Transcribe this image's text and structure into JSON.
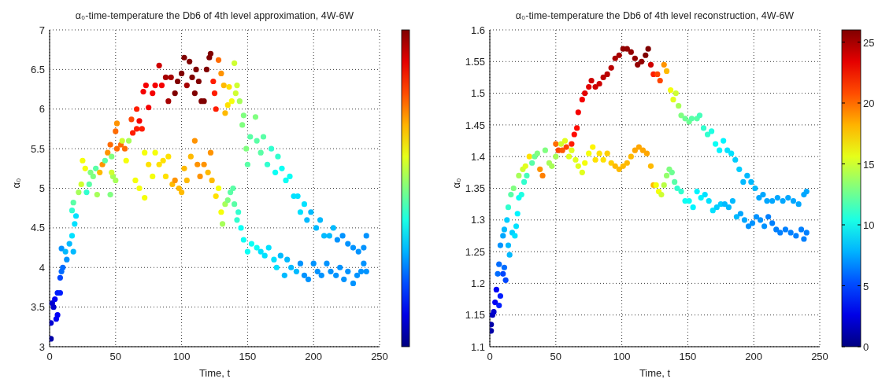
{
  "chart_data": [
    {
      "type": "scatter",
      "title": "α₀-time-temperature  the Db6 of 4th level approximation, 4W-6W",
      "xlabel": "Time, t",
      "ylabel": "α₀",
      "xlim": [
        0,
        250
      ],
      "xticks": [
        0,
        50,
        100,
        150,
        200,
        250
      ],
      "ylim": [
        3,
        7
      ],
      "yticks": [
        3,
        3.5,
        4,
        4.5,
        5,
        5.5,
        6,
        6.5,
        7
      ],
      "grid": true,
      "marker": "circle",
      "colors": [
        "#0000a6",
        "#0000cf",
        "#0000cf",
        "#0000cf",
        "#0000f5",
        "#0000f5",
        "#0000f5",
        "#001dff",
        "#001dff",
        "#0045ff",
        "#006bff",
        "#006bff",
        "#0093ff",
        "#00baff",
        "#0093ff",
        "#00baff",
        "#00e1ff",
        "#00baff",
        "#00e1ff",
        "#00e1ff",
        "#31ffcf",
        "#59ffa6",
        "#a6ff59",
        "#cfff31",
        "#f5ff0a",
        "#f5ff0a",
        "#31ffcf",
        "#59ffa6",
        "#80ff80",
        "#80ff80",
        "#59ffa6",
        "#a6ff59",
        "#ffba00",
        "#ff9300",
        "#59ffa6",
        "#ff9300",
        "#ff6b00",
        "#80ff80",
        "#a6ff59",
        "#cfff31",
        "#80ff80",
        "#a6ff59",
        "#ff6b00",
        "#ff6b00",
        "#ff9300",
        "#ff6b00",
        "#cfff31",
        "#ff6b00",
        "#f5ff0a",
        "#a6ff59",
        "#ff4500",
        "#ff1d00",
        "#ff1d00",
        "#ff1d00",
        "#f50000",
        "#ff1d00",
        "#f50000",
        "#f50000",
        "#f50000",
        "#f50000",
        "#f50000",
        "#cf0000",
        "#f50000",
        "#a60000",
        "#a60000",
        "#a60000",
        "#800000",
        "#800000",
        "#800000",
        "#800000",
        "#a60000",
        "#800000",
        "#800000",
        "#800000",
        "#800000",
        "#800000",
        "#800000",
        "#800000",
        "#800000",
        "#800000",
        "#800000",
        "#ff1d00",
        "#ff1d00",
        "#ff1d00",
        "#ff6b00",
        "#ff9300",
        "#ffba00",
        "#ffba00",
        "#ffe100",
        "#ffe100",
        "#f5ff0a",
        "#cfff31",
        "#cfff31",
        "#cfff31",
        "#a6ff59",
        "#80ff80",
        "#80ff80",
        "#80ff80",
        "#59ffa6",
        "#59ffa6",
        "#80ff80",
        "#59ffa6",
        "#59ffa6",
        "#59ffa6",
        "#31ffcf",
        "#31ffcf",
        "#0afff5",
        "#31ffcf",
        "#0afff5",
        "#0afff5",
        "#0afff5",
        "#00e1ff",
        "#00e1ff",
        "#00e1ff",
        "#00e1ff",
        "#00baff",
        "#00baff",
        "#00baff",
        "#00baff",
        "#00baff",
        "#00baff",
        "#00baff",
        "#0093ff",
        "#0093ff",
        "#0093ff",
        "#0093ff",
        "#0093ff",
        "#0093ff",
        "#0093ff",
        "#f5ff0a",
        "#ffe100",
        "#f5ff0a",
        "#f5ff0a",
        "#f5ff0a",
        "#f5ff0a",
        "#f5ff0a",
        "#ffe100",
        "#ffe100",
        "#ffe100",
        "#ffe100",
        "#ffba00",
        "#ff9300",
        "#ffba00",
        "#ffba00",
        "#ffba00",
        "#ffba00",
        "#ffba00",
        "#ff9300",
        "#ff9300",
        "#ff9300",
        "#ff9300",
        "#ffba00",
        "#ff9300",
        "#ffba00",
        "#ffe100",
        "#f5ff0a",
        "#f5ff0a",
        "#a6ff59",
        "#a6ff59",
        "#80ff80",
        "#59ffa6",
        "#59ffa6",
        "#59ffa6",
        "#31ffcf",
        "#31ffcf",
        "#0afff5",
        "#0afff5",
        "#0afff5",
        "#0afff5",
        "#0afff5",
        "#00e1ff",
        "#00e1ff",
        "#00e1ff",
        "#00e1ff",
        "#00e1ff",
        "#00baff",
        "#00baff",
        "#00baff",
        "#00baff",
        "#00baff",
        "#0093ff",
        "#0093ff",
        "#0093ff",
        "#0093ff",
        "#0093ff",
        "#0093ff",
        "#0093ff",
        "#0093ff",
        "#0093ff",
        "#0093ff",
        "#0093ff",
        "#0093ff",
        "#0093ff",
        "#0093ff",
        "#0093ff",
        "#0093ff",
        "#0093ff"
      ],
      "x": [
        1,
        1,
        2,
        3,
        4,
        5,
        6,
        6,
        8,
        8,
        9,
        10,
        9,
        12,
        13,
        15,
        17,
        18,
        19,
        20,
        17,
        18,
        22,
        24,
        25,
        27,
        28,
        30,
        31,
        33,
        35,
        36,
        38,
        40,
        42,
        44,
        46,
        47,
        48,
        47,
        46,
        50,
        51,
        50,
        51,
        54,
        55,
        57,
        58,
        60,
        62,
        63,
        66,
        66,
        68,
        70,
        71,
        73,
        75,
        78,
        80,
        83,
        85,
        88,
        90,
        92,
        95,
        97,
        100,
        102,
        104,
        106,
        108,
        110,
        111,
        113,
        115,
        117,
        119,
        121,
        122,
        124,
        125,
        126,
        128,
        130,
        132,
        133,
        135,
        136,
        138,
        140,
        141,
        142,
        144,
        146,
        147,
        149,
        150,
        152,
        156,
        157,
        160,
        162,
        165,
        168,
        171,
        173,
        176,
        179,
        182,
        185,
        188,
        190,
        193,
        195,
        198,
        202,
        205,
        208,
        212,
        215,
        218,
        222,
        226,
        230,
        234,
        238,
        240,
        72,
        75,
        72,
        68,
        65,
        78,
        80,
        83,
        86,
        88,
        90,
        93,
        95,
        98,
        100,
        102,
        104,
        107,
        110,
        112,
        114,
        117,
        120,
        122,
        123,
        126,
        128,
        130,
        131,
        133,
        135,
        137,
        139,
        140,
        142,
        143,
        145,
        147,
        150,
        153,
        157,
        160,
        163,
        166,
        170,
        172,
        175,
        178,
        180,
        183,
        187,
        190,
        193,
        196,
        200,
        203,
        206,
        210,
        213,
        217,
        220,
        223,
        226,
        230,
        233,
        236,
        238,
        240
      ],
      "values": [
        3.1,
        3.3,
        3.55,
        3.5,
        3.6,
        3.35,
        3.4,
        3.68,
        3.68,
        3.87,
        3.95,
        4.0,
        4.24,
        4.2,
        4.1,
        4.3,
        4.4,
        4.2,
        4.55,
        4.65,
        4.72,
        4.82,
        4.95,
        5.05,
        5.35,
        5.25,
        4.95,
        5.05,
        5.2,
        5.15,
        5.25,
        4.92,
        5.2,
        5.3,
        5.35,
        5.45,
        5.55,
        5.4,
        5.15,
        5.2,
        4.92,
        5.1,
        5.5,
        5.72,
        5.82,
        5.55,
        5.6,
        5.5,
        5.35,
        5.6,
        5.87,
        5.7,
        5.75,
        6.0,
        5.85,
        5.75,
        6.22,
        6.3,
        6.02,
        6.2,
        6.3,
        6.55,
        6.3,
        6.4,
        6.1,
        6.4,
        6.2,
        6.35,
        6.45,
        6.65,
        6.3,
        6.6,
        6.4,
        6.2,
        6.5,
        6.35,
        6.1,
        6.1,
        6.5,
        6.65,
        6.7,
        6.35,
        6.2,
        6.0,
        6.62,
        6.45,
        6.3,
        5.95,
        6.05,
        6.28,
        6.1,
        6.58,
        6.2,
        6.3,
        6.1,
        5.8,
        5.92,
        5.5,
        5.3,
        5.65,
        5.9,
        5.6,
        5.45,
        5.65,
        5.3,
        5.5,
        5.2,
        5.4,
        5.25,
        5.1,
        5.15,
        4.9,
        4.9,
        4.7,
        4.8,
        4.6,
        4.7,
        4.5,
        4.6,
        4.4,
        4.4,
        4.5,
        4.35,
        4.4,
        4.3,
        4.25,
        4.2,
        4.25,
        4.4,
        5.45,
        5.3,
        4.88,
        5.0,
        5.1,
        5.15,
        5.45,
        5.3,
        5.35,
        5.15,
        5.4,
        5.05,
        5.1,
        5.0,
        4.95,
        5.25,
        5.1,
        5.4,
        5.6,
        5.3,
        5.15,
        5.3,
        5.2,
        5.45,
        5.1,
        4.9,
        5.0,
        4.7,
        4.55,
        4.8,
        4.85,
        4.95,
        5.0,
        4.8,
        4.6,
        4.7,
        4.5,
        4.35,
        4.2,
        4.3,
        4.25,
        4.2,
        4.15,
        4.25,
        4.1,
        4.0,
        4.15,
        3.9,
        4.1,
        4.0,
        3.95,
        4.05,
        3.9,
        3.85,
        4.05,
        3.95,
        3.9,
        4.05,
        3.95,
        3.9,
        4.0,
        3.85,
        3.95,
        3.8,
        3.9,
        3.95,
        4.05,
        3.95
      ]
    },
    {
      "type": "scatter",
      "title": "α₀-time-temperature  the Db6 of 4th level reconstruction, 4W-6W",
      "xlabel": "Time, t",
      "ylabel": "α₀",
      "xlim": [
        0,
        250
      ],
      "xticks": [
        0,
        50,
        100,
        150,
        200,
        250
      ],
      "ylim": [
        1.1,
        1.6
      ],
      "yticks": [
        1.1,
        1.15,
        1.2,
        1.25,
        1.3,
        1.35,
        1.4,
        1.45,
        1.5,
        1.55,
        1.6
      ],
      "grid": true,
      "marker": "circle",
      "clim": [
        0,
        26
      ],
      "cticks": [
        0,
        5,
        10,
        15,
        20,
        25
      ],
      "x": [
        1,
        1,
        2,
        3,
        4,
        5,
        7,
        8,
        10,
        12,
        11,
        7,
        6,
        8,
        10,
        11,
        13,
        14,
        15,
        17,
        19,
        20,
        21,
        14,
        16,
        18,
        22,
        24,
        26,
        28,
        22,
        25,
        27,
        30,
        32,
        34,
        36,
        38,
        40,
        42,
        45,
        47,
        50,
        50,
        52,
        54,
        55,
        57,
        58,
        60,
        62,
        64,
        66,
        67,
        70,
        72,
        75,
        77,
        80,
        83,
        86,
        89,
        92,
        95,
        98,
        101,
        104,
        107,
        110,
        112,
        115,
        118,
        120,
        122,
        124,
        127,
        129,
        132,
        134,
        137,
        139,
        141,
        143,
        145,
        148,
        151,
        153,
        157,
        159,
        162,
        165,
        168,
        171,
        174,
        177,
        180,
        183,
        186,
        189,
        192,
        195,
        198,
        201,
        204,
        207,
        210,
        214,
        218,
        222,
        226,
        230,
        234,
        238,
        240,
        62,
        65,
        67,
        70,
        72,
        75,
        78,
        80,
        83,
        86,
        89,
        92,
        95,
        98,
        101,
        104,
        107,
        110,
        113,
        116,
        119,
        122,
        124,
        126,
        128,
        130,
        132,
        134,
        136,
        138,
        140,
        142,
        145,
        148,
        151,
        154,
        157,
        160,
        163,
        166,
        169,
        172,
        175,
        178,
        181,
        184,
        187,
        190,
        193,
        196,
        199,
        202,
        205,
        208,
        211,
        214,
        217,
        220,
        224,
        228,
        232,
        236,
        238,
        240
      ],
      "values": [
        1.125,
        1.135,
        1.15,
        1.155,
        1.17,
        1.19,
        1.165,
        1.18,
        1.215,
        1.205,
        1.225,
        1.23,
        1.215,
        1.26,
        1.275,
        1.285,
        1.3,
        1.26,
        1.245,
        1.28,
        1.275,
        1.29,
        1.31,
        1.32,
        1.34,
        1.35,
        1.335,
        1.34,
        1.36,
        1.37,
        1.37,
        1.38,
        1.385,
        1.4,
        1.39,
        1.4,
        1.405,
        1.38,
        1.37,
        1.41,
        1.39,
        1.385,
        1.4,
        1.42,
        1.41,
        1.42,
        1.41,
        1.425,
        1.415,
        1.4,
        1.42,
        1.435,
        1.445,
        1.47,
        1.49,
        1.5,
        1.51,
        1.52,
        1.51,
        1.515,
        1.525,
        1.53,
        1.54,
        1.555,
        1.56,
        1.57,
        1.57,
        1.565,
        1.555,
        1.545,
        1.55,
        1.56,
        1.57,
        1.545,
        1.53,
        1.53,
        1.52,
        1.545,
        1.535,
        1.505,
        1.49,
        1.5,
        1.48,
        1.465,
        1.46,
        1.455,
        1.46,
        1.46,
        1.465,
        1.445,
        1.435,
        1.44,
        1.42,
        1.41,
        1.425,
        1.41,
        1.405,
        1.395,
        1.38,
        1.36,
        1.37,
        1.36,
        1.35,
        1.335,
        1.34,
        1.33,
        1.33,
        1.335,
        1.33,
        1.335,
        1.33,
        1.325,
        1.34,
        1.345,
        1.41,
        1.395,
        1.385,
        1.375,
        1.39,
        1.405,
        1.415,
        1.395,
        1.405,
        1.395,
        1.405,
        1.39,
        1.385,
        1.38,
        1.385,
        1.39,
        1.4,
        1.41,
        1.415,
        1.41,
        1.405,
        1.385,
        1.355,
        1.355,
        1.345,
        1.34,
        1.355,
        1.37,
        1.38,
        1.375,
        1.36,
        1.35,
        1.345,
        1.33,
        1.33,
        1.32,
        1.345,
        1.335,
        1.34,
        1.33,
        1.315,
        1.32,
        1.325,
        1.325,
        1.32,
        1.33,
        1.305,
        1.31,
        1.3,
        1.29,
        1.295,
        1.305,
        1.3,
        1.29,
        1.305,
        1.295,
        1.285,
        1.28,
        1.285,
        1.28,
        1.275,
        1.285,
        1.27,
        1.28
      ],
      "cvalues": [
        1,
        1,
        1.5,
        2,
        3,
        3,
        4,
        4,
        5,
        5,
        6,
        6,
        6,
        7,
        7.5,
        8,
        8.5,
        8,
        8,
        8.5,
        9,
        9,
        9.5,
        11,
        12,
        13,
        10,
        10.5,
        11,
        11.5,
        14,
        15,
        15.5,
        17,
        12,
        12.5,
        13,
        19,
        19.5,
        13,
        14,
        14,
        14,
        20,
        21,
        15,
        20.5,
        15.5,
        21,
        15.5,
        22,
        22.5,
        22.5,
        23,
        23,
        23.5,
        23.5,
        24,
        24,
        24,
        24.5,
        24.5,
        24.5,
        25,
        25,
        25.5,
        25.5,
        25.5,
        25.5,
        25.5,
        25.5,
        26,
        26,
        24,
        22,
        21,
        21,
        19,
        18,
        16,
        15.5,
        15,
        14,
        13,
        12.5,
        12.5,
        12,
        12,
        11.5,
        11,
        11,
        10.5,
        10,
        9.5,
        9.5,
        9,
        9,
        8.5,
        8.5,
        8,
        8,
        8,
        8,
        7.5,
        7.5,
        7.5,
        7.5,
        7.5,
        7.5,
        7.5,
        7.5,
        7.5,
        7.5,
        7.5,
        15.5,
        15.5,
        15.5,
        15.5,
        16,
        16,
        16.5,
        17,
        17,
        17,
        17.5,
        17.5,
        18,
        18,
        18,
        18,
        18,
        18.5,
        18.5,
        18.5,
        18.5,
        18,
        18,
        16,
        16,
        15,
        14.5,
        13.5,
        13,
        12.5,
        12,
        11,
        11,
        10,
        10,
        9.5,
        9.5,
        9.5,
        9,
        9,
        9,
        8.5,
        8.5,
        8,
        8,
        8,
        8,
        7.5,
        7.5,
        7,
        7,
        7,
        7,
        7,
        6.5,
        6.5,
        6.5,
        6.5,
        6.5,
        6.5,
        6.5,
        6.5,
        6.5,
        6.5
      ]
    }
  ]
}
